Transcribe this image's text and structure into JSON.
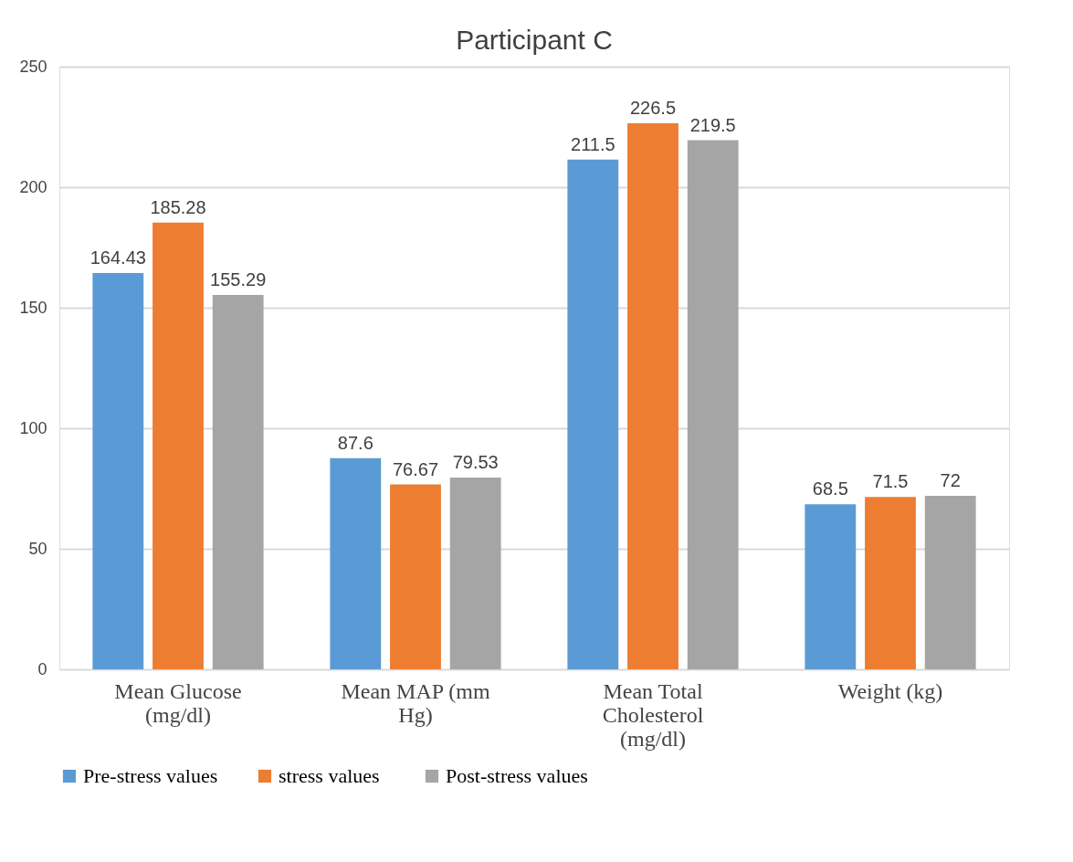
{
  "chart_data": {
    "type": "bar",
    "title": "Participant C",
    "categories": [
      "Mean Glucose (mg/dl)",
      "Mean MAP (mm Hg)",
      "Mean Total Cholesterol (mg/dl)",
      "Weight (kg)"
    ],
    "series": [
      {
        "name": "Pre-stress values",
        "color": "#5b9bd5",
        "values": [
          164.43,
          87.6,
          211.5,
          68.5
        ]
      },
      {
        "name": "stress  values",
        "color": "#ed7d31",
        "values": [
          185.28,
          76.67,
          226.5,
          71.5
        ]
      },
      {
        "name": "Post-stress values",
        "color": "#a5a5a5",
        "values": [
          155.29,
          79.53,
          219.5,
          72
        ]
      }
    ],
    "ylim": [
      0,
      250
    ],
    "yticks": [
      0,
      50,
      100,
      150,
      200,
      250
    ],
    "grid": "y",
    "legend": "bottom",
    "data_labels": true
  }
}
